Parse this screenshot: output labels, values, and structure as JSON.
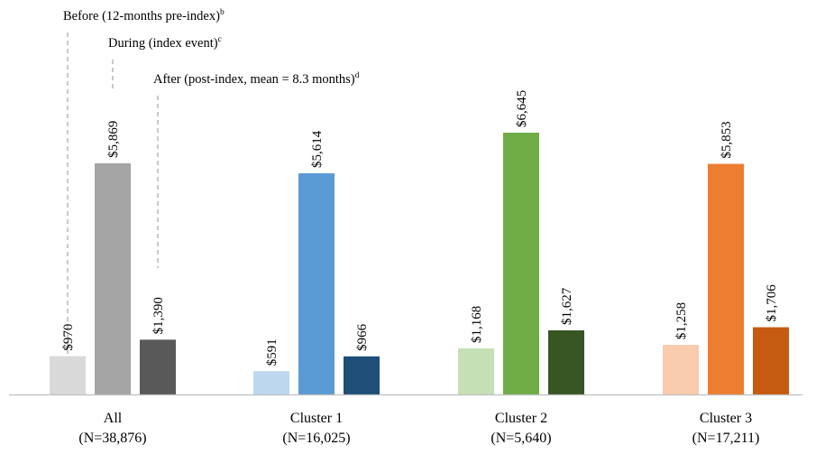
{
  "chart_data": {
    "type": "bar",
    "title": "",
    "xlabel": "",
    "ylabel": "",
    "legend_placement": "top-left",
    "grid": false,
    "groups": [
      {
        "name": "All",
        "n_label": "(N=38,876)",
        "values": [
          970,
          5869,
          1390
        ],
        "value_labels": [
          "$970",
          "$5,869",
          "$1,390"
        ],
        "colors": [
          "#d9d9d9",
          "#a5a5a5",
          "#595959"
        ]
      },
      {
        "name": "Cluster 1",
        "n_label": "(N=16,025)",
        "values": [
          591,
          5614,
          966
        ],
        "value_labels": [
          "$591",
          "$5,614",
          "$966"
        ],
        "colors": [
          "#bdd7ee",
          "#5b9bd5",
          "#1f4e79"
        ]
      },
      {
        "name": "Cluster 2",
        "n_label": "(N=5,640)",
        "values": [
          1168,
          6645,
          1627
        ],
        "value_labels": [
          "$1,168",
          "$6,645",
          "$1,627"
        ],
        "colors": [
          "#c5e0b4",
          "#70ad47",
          "#375623"
        ]
      },
      {
        "name": "Cluster 3",
        "n_label": "(N=17,211)",
        "values": [
          1258,
          5853,
          1706
        ],
        "value_labels": [
          "$1,258",
          "$5,853",
          "$1,706"
        ],
        "colors": [
          "#f8cbad",
          "#ed7d31",
          "#c55a11"
        ]
      }
    ],
    "periods": [
      {
        "name": "Before (12-months pre-index)",
        "sup": "b"
      },
      {
        "name": "During (index event)",
        "sup": "c"
      },
      {
        "name": "After (post-index, mean = 8.3 months)",
        "sup": "d"
      }
    ],
    "ylim": [
      0,
      7000
    ]
  }
}
